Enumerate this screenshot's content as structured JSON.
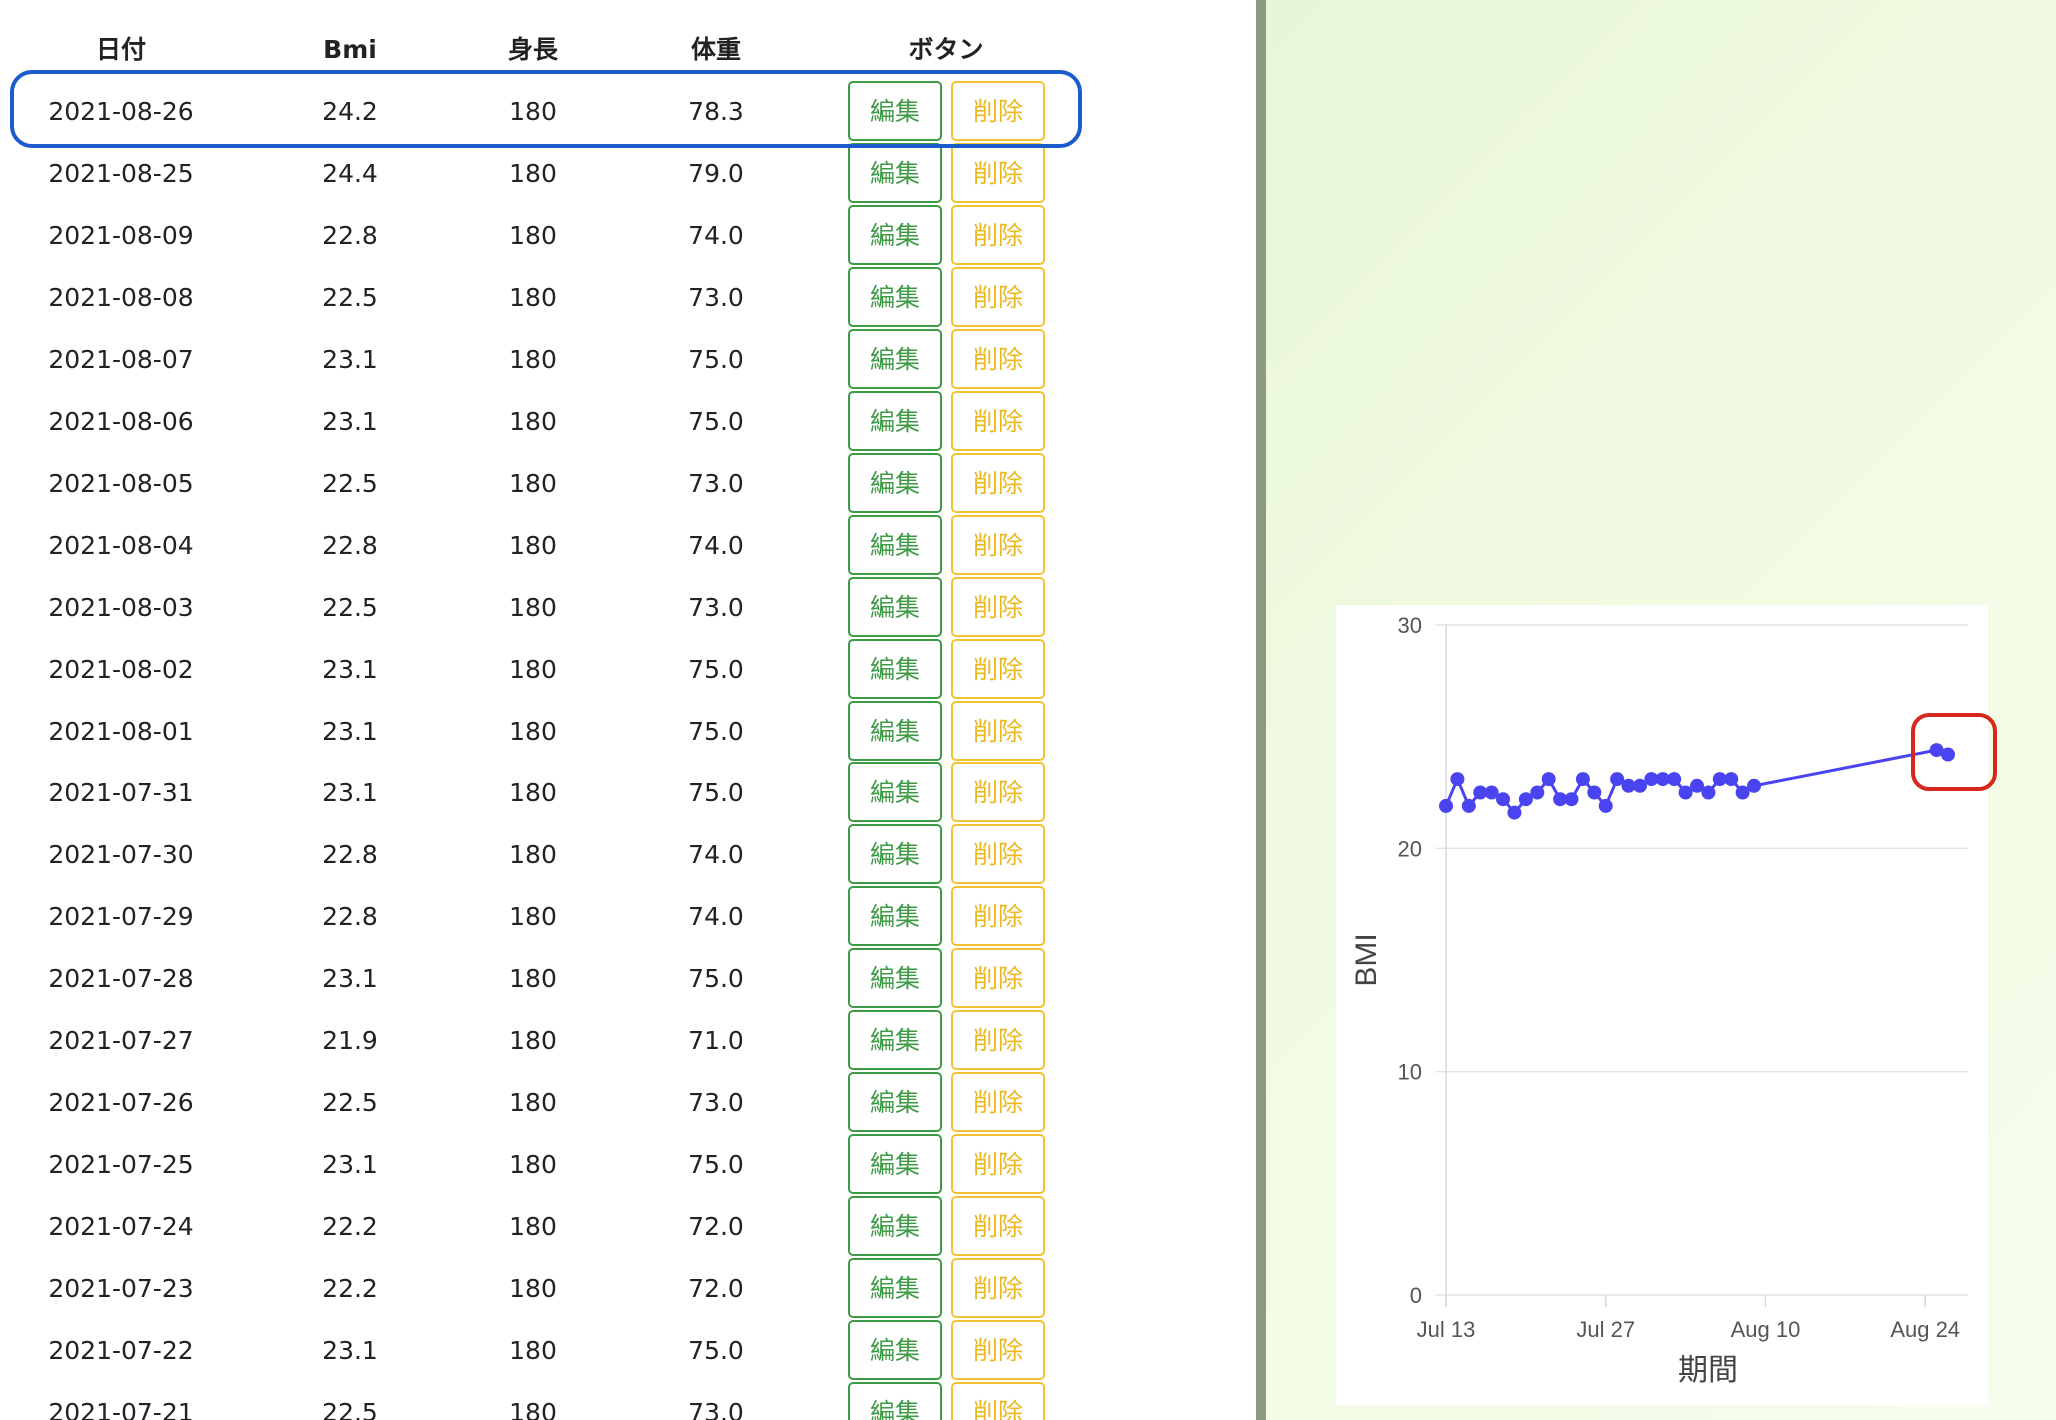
{
  "table": {
    "headers": {
      "date": "日付",
      "bmi": "Bmi",
      "height": "身長",
      "weight": "体重",
      "buttons": "ボタン"
    },
    "edit_label": "編集",
    "delete_label": "削除",
    "rows": [
      {
        "date": "2021-08-26",
        "bmi": "24.2",
        "height": "180",
        "weight": "78.3"
      },
      {
        "date": "2021-08-25",
        "bmi": "24.4",
        "height": "180",
        "weight": "79.0"
      },
      {
        "date": "2021-08-09",
        "bmi": "22.8",
        "height": "180",
        "weight": "74.0"
      },
      {
        "date": "2021-08-08",
        "bmi": "22.5",
        "height": "180",
        "weight": "73.0"
      },
      {
        "date": "2021-08-07",
        "bmi": "23.1",
        "height": "180",
        "weight": "75.0"
      },
      {
        "date": "2021-08-06",
        "bmi": "23.1",
        "height": "180",
        "weight": "75.0"
      },
      {
        "date": "2021-08-05",
        "bmi": "22.5",
        "height": "180",
        "weight": "73.0"
      },
      {
        "date": "2021-08-04",
        "bmi": "22.8",
        "height": "180",
        "weight": "74.0"
      },
      {
        "date": "2021-08-03",
        "bmi": "22.5",
        "height": "180",
        "weight": "73.0"
      },
      {
        "date": "2021-08-02",
        "bmi": "23.1",
        "height": "180",
        "weight": "75.0"
      },
      {
        "date": "2021-08-01",
        "bmi": "23.1",
        "height": "180",
        "weight": "75.0"
      },
      {
        "date": "2021-07-31",
        "bmi": "23.1",
        "height": "180",
        "weight": "75.0"
      },
      {
        "date": "2021-07-30",
        "bmi": "22.8",
        "height": "180",
        "weight": "74.0"
      },
      {
        "date": "2021-07-29",
        "bmi": "22.8",
        "height": "180",
        "weight": "74.0"
      },
      {
        "date": "2021-07-28",
        "bmi": "23.1",
        "height": "180",
        "weight": "75.0"
      },
      {
        "date": "2021-07-27",
        "bmi": "21.9",
        "height": "180",
        "weight": "71.0"
      },
      {
        "date": "2021-07-26",
        "bmi": "22.5",
        "height": "180",
        "weight": "73.0"
      },
      {
        "date": "2021-07-25",
        "bmi": "23.1",
        "height": "180",
        "weight": "75.0"
      },
      {
        "date": "2021-07-24",
        "bmi": "22.2",
        "height": "180",
        "weight": "72.0"
      },
      {
        "date": "2021-07-23",
        "bmi": "22.2",
        "height": "180",
        "weight": "72.0"
      },
      {
        "date": "2021-07-22",
        "bmi": "23.1",
        "height": "180",
        "weight": "75.0"
      },
      {
        "date": "2021-07-21",
        "bmi": "22.5",
        "height": "180",
        "weight": "73.0"
      }
    ]
  },
  "colors": {
    "edit": "#3d9a45",
    "delete": "#ecb820",
    "row_highlight": "#1a5ccc",
    "point_highlight": "#d8281e",
    "line": "#4a44f0",
    "grid": "#e3e3e3"
  },
  "chart_data": {
    "type": "line",
    "xlabel": "期間",
    "ylabel": "BMI",
    "ylim": [
      0,
      30
    ],
    "yticks": [
      "0",
      "10",
      "20",
      "30"
    ],
    "x_range": [
      "2021-07-13",
      "2021-08-26"
    ],
    "xticks": [
      {
        "label": "Jul 13",
        "date": "2021-07-13"
      },
      {
        "label": "Jul 27",
        "date": "2021-07-27"
      },
      {
        "label": "Aug 10",
        "date": "2021-08-10"
      },
      {
        "label": "Aug 24",
        "date": "2021-08-24"
      }
    ],
    "series": [
      {
        "name": "BMI",
        "points": [
          [
            "2021-07-13",
            21.9
          ],
          [
            "2021-07-14",
            23.1
          ],
          [
            "2021-07-15",
            21.9
          ],
          [
            "2021-07-16",
            22.5
          ],
          [
            "2021-07-17",
            22.5
          ],
          [
            "2021-07-18",
            22.2
          ],
          [
            "2021-07-19",
            21.6
          ],
          [
            "2021-07-20",
            22.2
          ],
          [
            "2021-07-21",
            22.5
          ],
          [
            "2021-07-22",
            23.1
          ],
          [
            "2021-07-23",
            22.2
          ],
          [
            "2021-07-24",
            22.2
          ],
          [
            "2021-07-25",
            23.1
          ],
          [
            "2021-07-26",
            22.5
          ],
          [
            "2021-07-27",
            21.9
          ],
          [
            "2021-07-28",
            23.1
          ],
          [
            "2021-07-29",
            22.8
          ],
          [
            "2021-07-30",
            22.8
          ],
          [
            "2021-07-31",
            23.1
          ],
          [
            "2021-08-01",
            23.1
          ],
          [
            "2021-08-02",
            23.1
          ],
          [
            "2021-08-03",
            22.5
          ],
          [
            "2021-08-04",
            22.8
          ],
          [
            "2021-08-05",
            22.5
          ],
          [
            "2021-08-06",
            23.1
          ],
          [
            "2021-08-07",
            23.1
          ],
          [
            "2021-08-08",
            22.5
          ],
          [
            "2021-08-09",
            22.8
          ],
          [
            "2021-08-25",
            24.4
          ],
          [
            "2021-08-26",
            24.2
          ]
        ]
      }
    ]
  }
}
